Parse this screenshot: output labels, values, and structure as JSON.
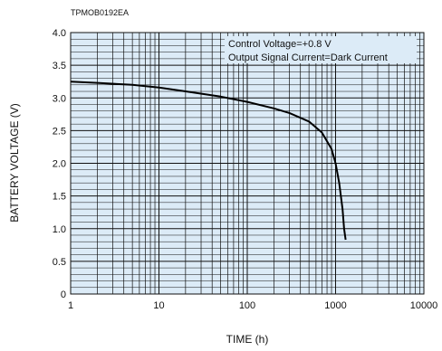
{
  "chart_data": {
    "type": "line",
    "code": "TPMOB0192EA",
    "xlabel": "TIME (h)",
    "ylabel": "BATTERY VOLTAGE (V)",
    "x_scale": "log",
    "xlim": [
      1,
      10000
    ],
    "ylim": [
      0,
      4.0
    ],
    "x_ticks": [
      "1",
      "10",
      "100",
      "1000",
      "10000"
    ],
    "y_ticks": [
      "0",
      "0.5",
      "1.0",
      "1.5",
      "2.0",
      "2.5",
      "3.0",
      "3.5",
      "4.0"
    ],
    "grid": true,
    "annotations": [
      "Control Voltage=+0.8 V",
      "Output Signal Current=Dark Current"
    ],
    "colors": {
      "plot_bg": "#dcebf7",
      "grid": "#111111",
      "curve": "#000000"
    },
    "series": [
      {
        "x": [
          1,
          2,
          5,
          10,
          20,
          50,
          100,
          200,
          300,
          500,
          700,
          900,
          1000,
          1100,
          1200,
          1250,
          1300
        ],
        "y": [
          3.25,
          3.23,
          3.2,
          3.16,
          3.1,
          3.02,
          2.94,
          2.84,
          2.77,
          2.64,
          2.47,
          2.22,
          2.0,
          1.7,
          1.3,
          1.0,
          0.83
        ]
      }
    ]
  }
}
